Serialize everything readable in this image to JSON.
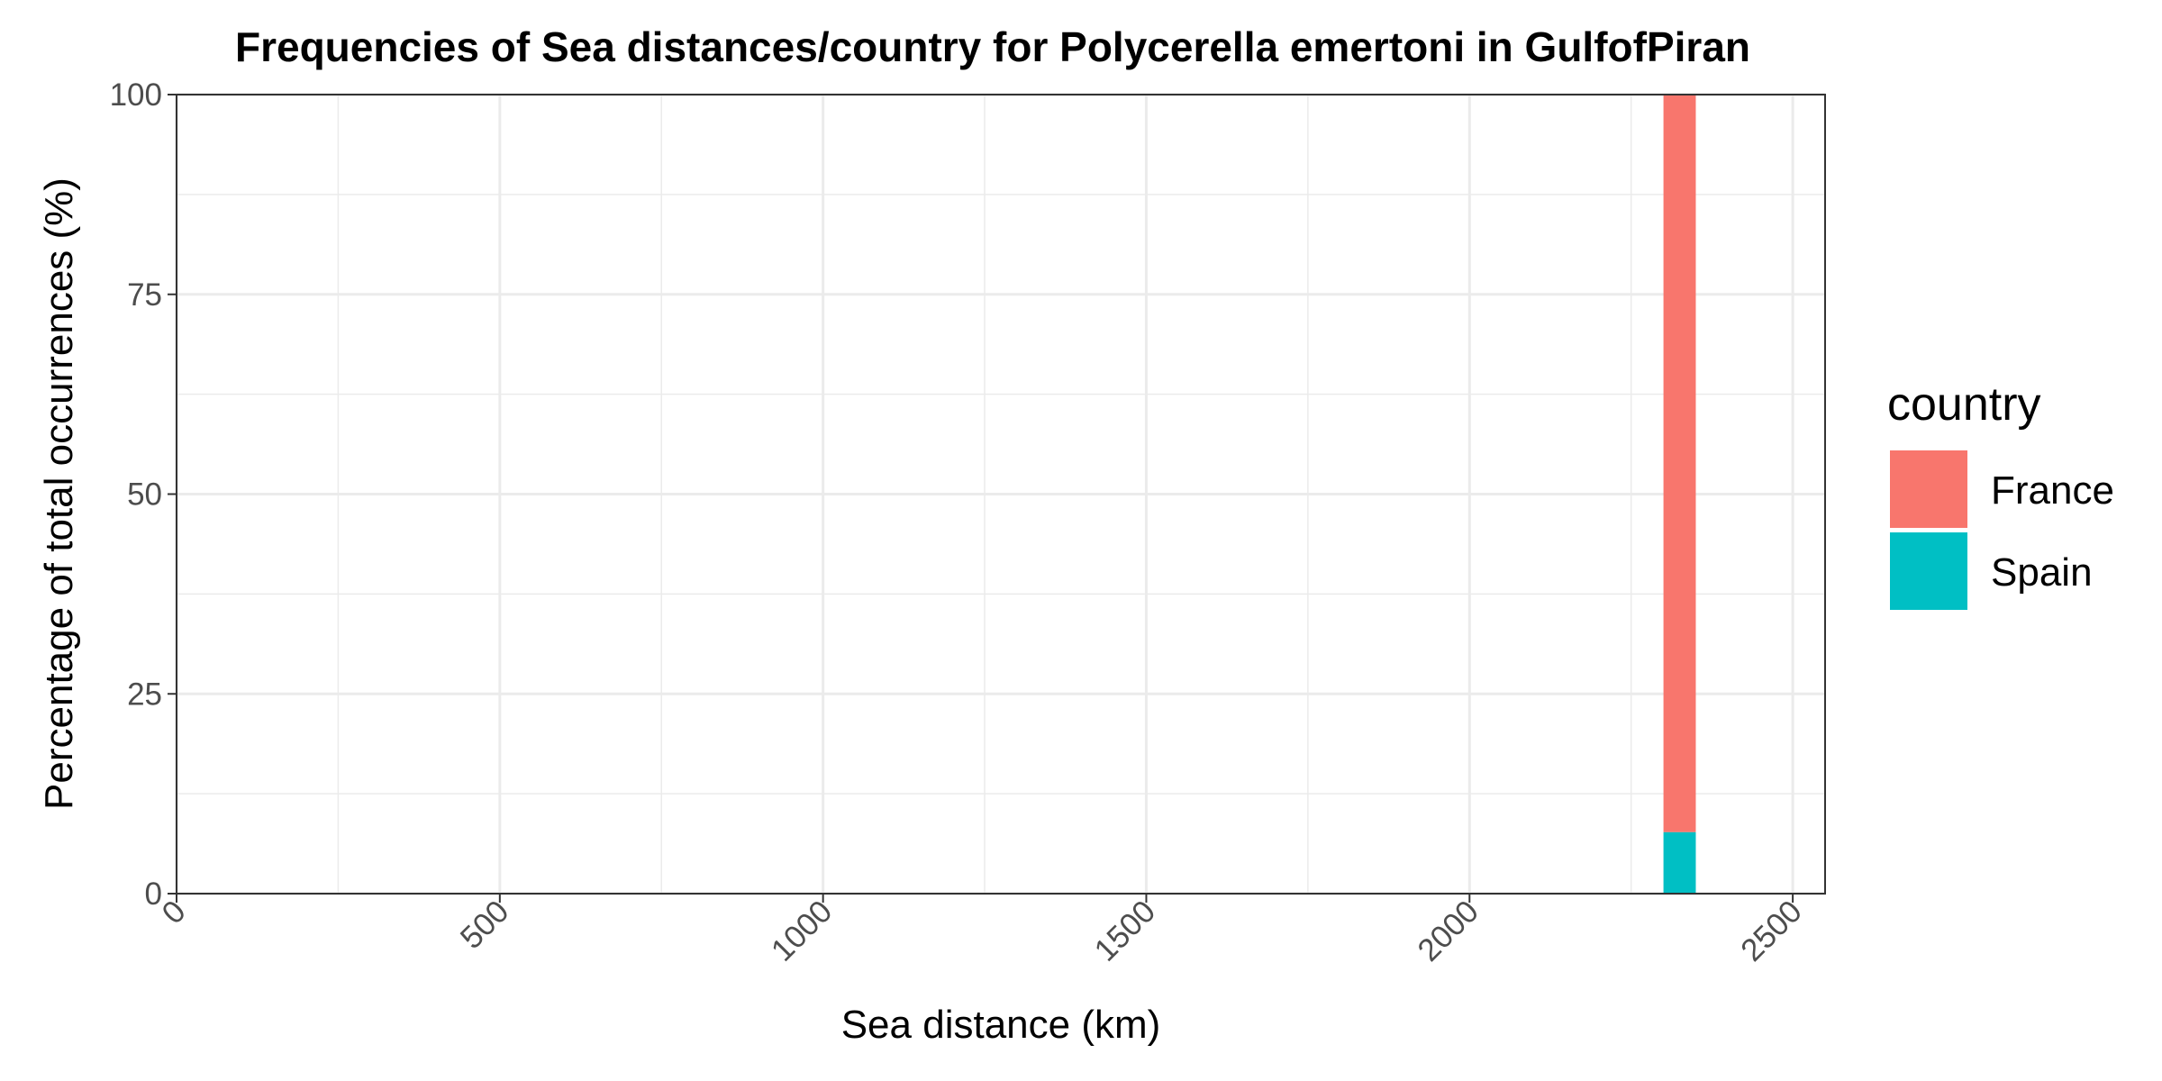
{
  "chart_data": {
    "type": "bar",
    "title": "Frequencies of Sea distances/country for Polycerella emertoni in GulfofPiran",
    "xlabel": "Sea distance (km)",
    "ylabel": "Percentage of total occurrences (%)",
    "xlim": [
      0,
      2550
    ],
    "ylim": [
      0,
      100
    ],
    "x_ticks": [
      "0",
      "500",
      "1000",
      "1500",
      "2000",
      "2500"
    ],
    "x_tick_values": [
      0,
      500,
      1000,
      1500,
      2000,
      2500
    ],
    "y_ticks": [
      "0",
      "25",
      "50",
      "75",
      "100"
    ],
    "y_tick_values": [
      0,
      25,
      50,
      75,
      100
    ],
    "x_minor_values": [
      250,
      750,
      1250,
      1750,
      2250
    ],
    "y_minor_values": [
      12.5,
      37.5,
      62.5,
      87.5
    ],
    "grid": true,
    "stacked": true,
    "bins": [
      {
        "x_start": 2300,
        "x_end": 2350
      }
    ],
    "series": [
      {
        "name": "Spain",
        "color": "#00BFC4",
        "values": [
          7.7
        ]
      },
      {
        "name": "France",
        "color": "#F8766D",
        "values": [
          92.3
        ]
      }
    ],
    "legend": {
      "title": "country",
      "placement": "right",
      "entries": [
        {
          "label": "France",
          "color": "#F8766D"
        },
        {
          "label": "Spain",
          "color": "#00BFC4"
        }
      ]
    }
  }
}
